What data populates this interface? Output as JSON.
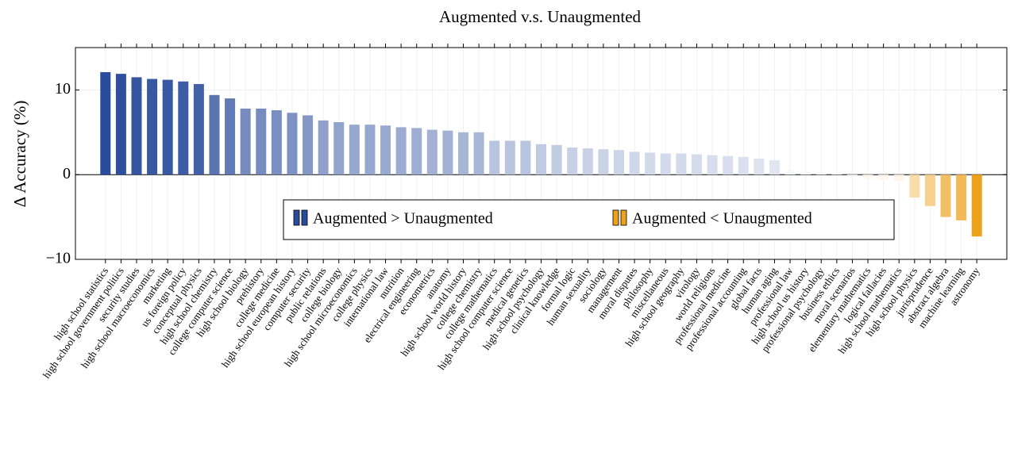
{
  "chart_data": {
    "type": "bar",
    "title": "Augmented v.s. Unaugmented",
    "y_label": "Δ Accuracy (%)",
    "categories": [
      "high school statistics",
      "high school government politics",
      "security studies",
      "high school macroeconomics",
      "marketing",
      "us foreign policy",
      "conceptual physics",
      "high school chemistry",
      "college computer science",
      "high school biology",
      "prehistory",
      "college medicine",
      "high school european history",
      "computer security",
      "public relations",
      "college biology",
      "high school microeconomics",
      "college physics",
      "international law",
      "nutrition",
      "electrical engineering",
      "econometrics",
      "anatomy",
      "high school world history",
      "college chemistry",
      "college mathematics",
      "high school computer science",
      "medical genetics",
      "high school psychology",
      "clinical knowledge",
      "formal logic",
      "human sexuality",
      "sociology",
      "management",
      "moral disputes",
      "philosophy",
      "miscellaneous",
      "high school geography",
      "virology",
      "world religions",
      "professional medicine",
      "professional accounting",
      "global facts",
      "human aging",
      "professional law",
      "high school us history",
      "professional psychology",
      "business ethics",
      "moral scenarios",
      "elementary mathematics",
      "logical fallacies",
      "high school mathematics",
      "high school physics",
      "jurisprudence",
      "abstract algebra",
      "machine learning",
      "astronomy"
    ],
    "values": [
      12.1,
      11.9,
      11.5,
      11.3,
      11.2,
      11.0,
      10.7,
      9.4,
      9.0,
      7.8,
      7.8,
      7.6,
      7.3,
      7.0,
      6.4,
      6.2,
      5.9,
      5.9,
      5.8,
      5.6,
      5.5,
      5.3,
      5.2,
      5.0,
      5.0,
      4.0,
      4.0,
      4.0,
      3.6,
      3.5,
      3.2,
      3.1,
      3.0,
      2.9,
      2.7,
      2.6,
      2.5,
      2.5,
      2.4,
      2.3,
      2.2,
      2.1,
      1.9,
      1.7,
      0.5,
      0.4,
      0.3,
      0.1,
      -0.2,
      -0.5,
      -0.6,
      -0.7,
      -2.7,
      -3.7,
      -5.0,
      -5.4,
      -7.3
    ],
    "color_positive": "#2a4c9c",
    "color_negative": "#eda21c",
    "legend": [
      {
        "name": "Augmented > Unaugmented",
        "color": "#2a4c9c"
      },
      {
        "name": "Augmented < Unaugmented",
        "color": "#eda21c"
      }
    ],
    "ylim": [
      -10,
      15
    ],
    "yticks": [
      {
        "value": -10,
        "label": "−10"
      },
      0,
      10
    ],
    "grid": true
  }
}
